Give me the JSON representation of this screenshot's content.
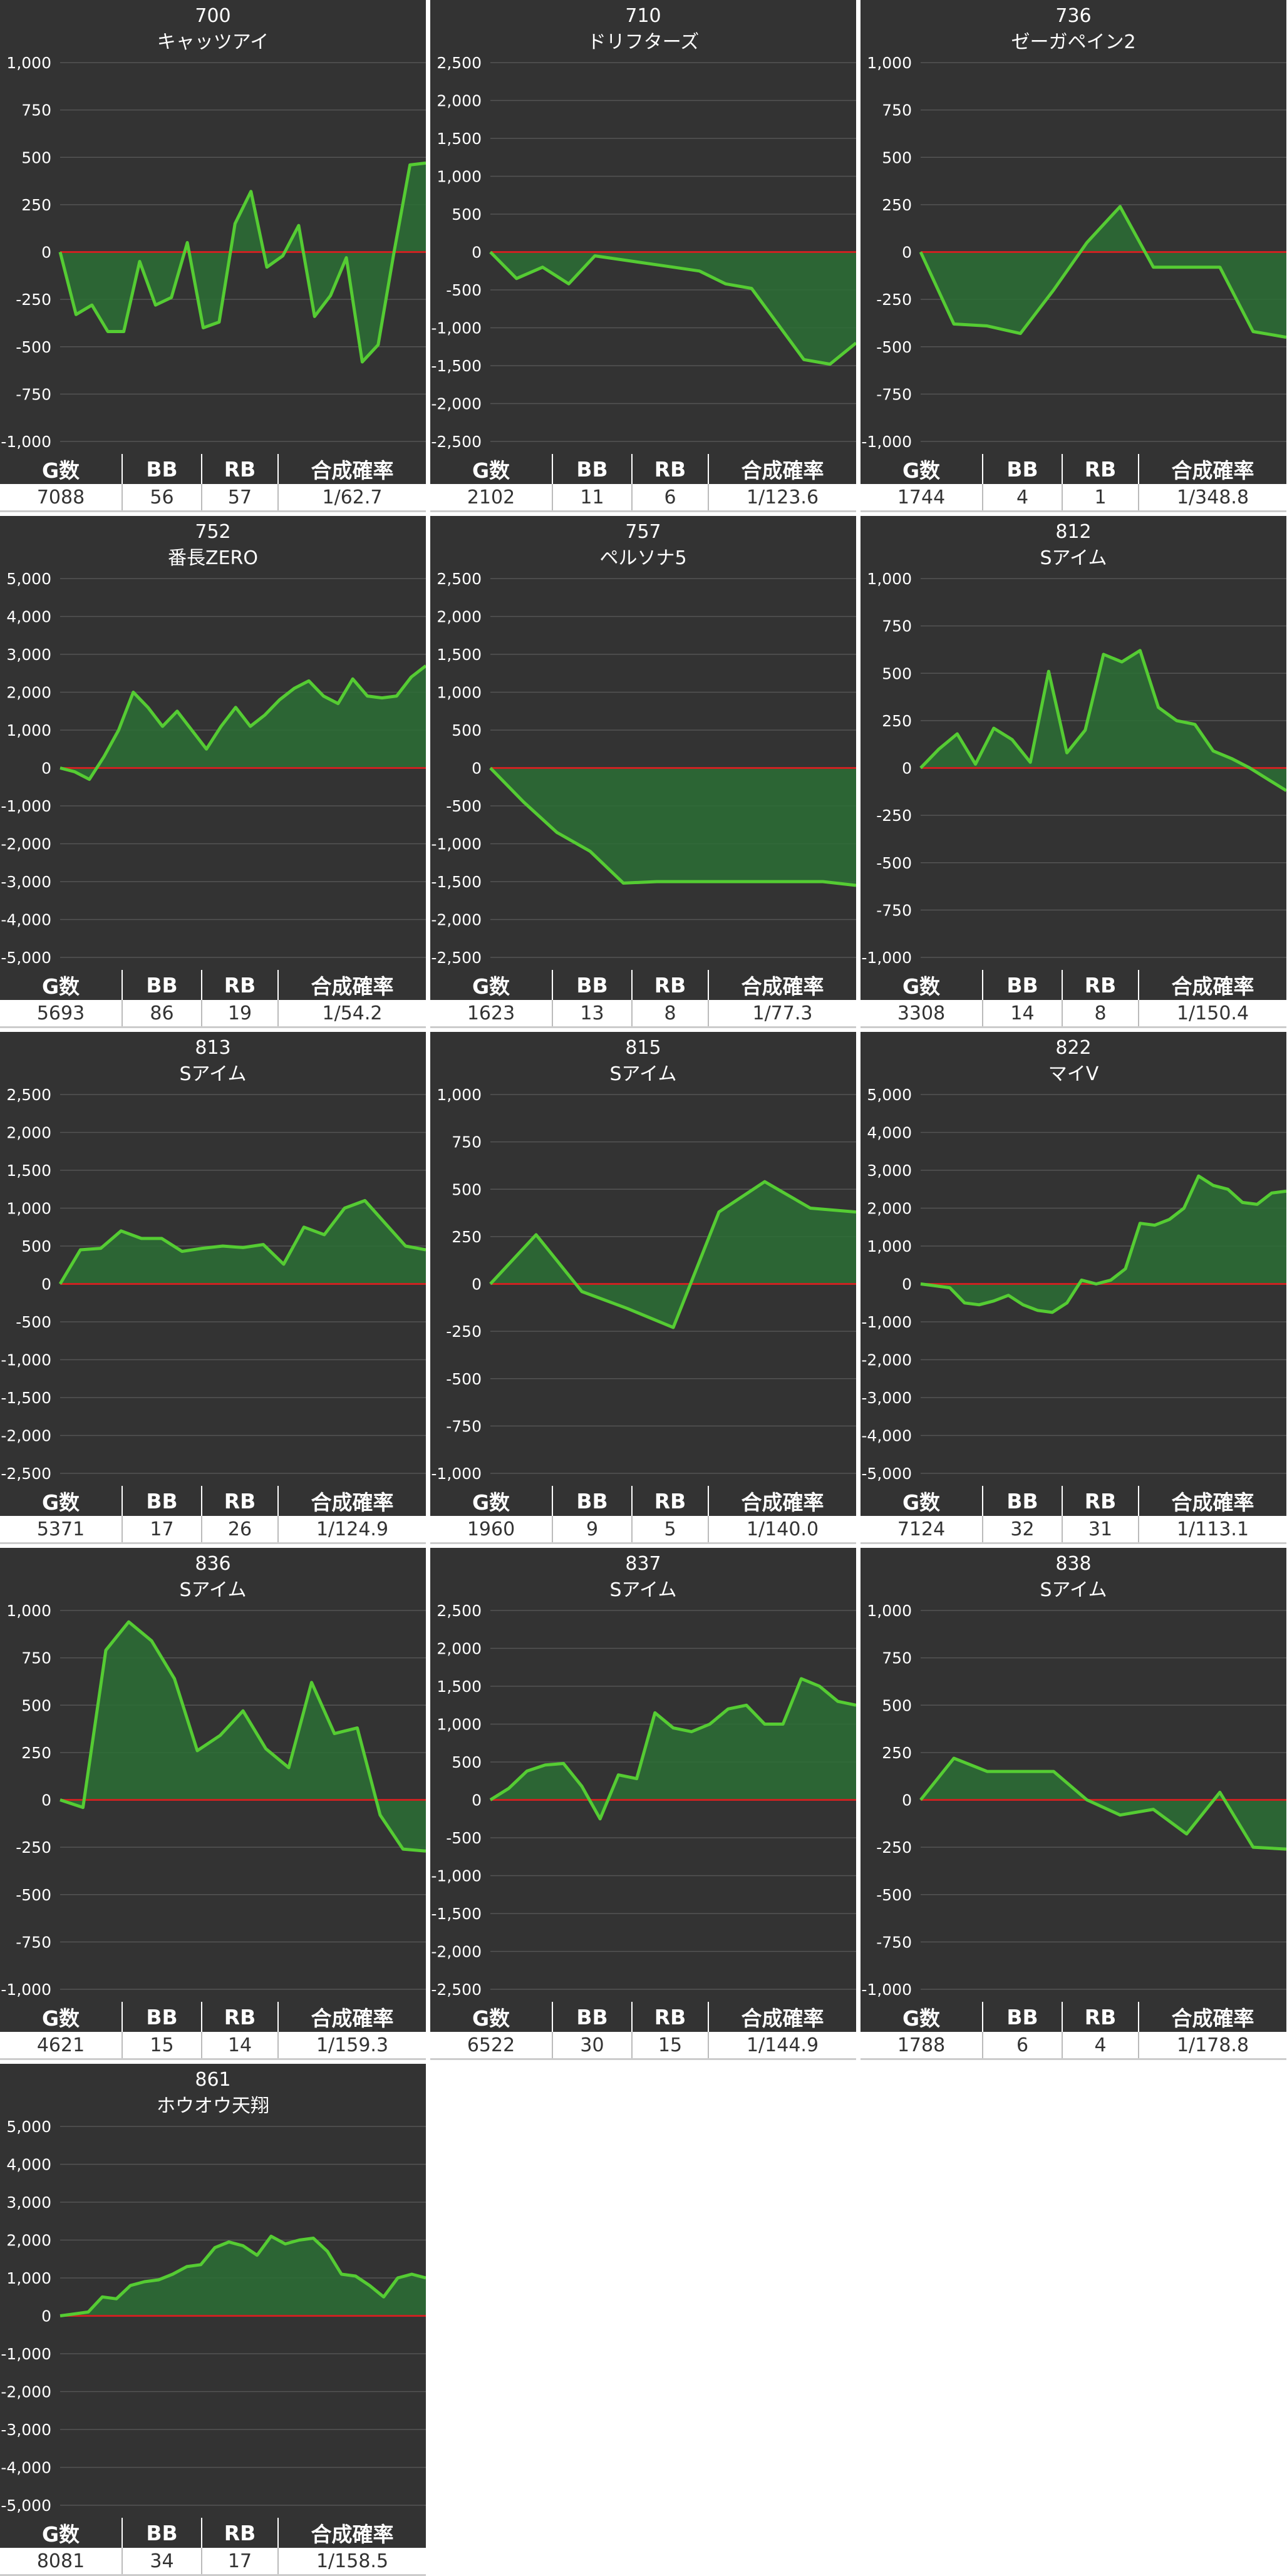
{
  "stat_headers": [
    "G数",
    "BB",
    "RB",
    "合成確率"
  ],
  "colors": {
    "background": "#333333",
    "line": "#55cc33",
    "fill": "#2c6e35",
    "zero_line": "#cc2222",
    "grid": "#555555"
  },
  "chart_data": [
    {
      "type": "area",
      "number": "700",
      "title": "キャッツアイ",
      "yticks": [
        "1,000",
        "750",
        "500",
        "250",
        "0",
        "-250",
        "-500",
        "-750",
        "-1,000"
      ],
      "ylim": [
        -1000,
        1000
      ],
      "values": [
        0,
        -330,
        -280,
        -420,
        -420,
        -50,
        -280,
        -240,
        50,
        -400,
        -370,
        150,
        320,
        -80,
        -20,
        140,
        -340,
        -230,
        -30,
        -580,
        -490,
        0,
        460,
        470
      ],
      "stats": {
        "games": "7088",
        "bb": "56",
        "rb": "57",
        "rate": "1/62.7"
      }
    },
    {
      "type": "area",
      "number": "710",
      "title": "ドリフターズ",
      "yticks": [
        "2,500",
        "2,000",
        "1,500",
        "1,000",
        "500",
        "0",
        "-500",
        "-1,000",
        "-1,500",
        "-2,000",
        "-2,500"
      ],
      "ylim": [
        -2500,
        2500
      ],
      "values": [
        0,
        -350,
        -200,
        -420,
        -50,
        -100,
        -150,
        -200,
        -250,
        -420,
        -480,
        -950,
        -1420,
        -1480,
        -1200
      ],
      "stats": {
        "games": "2102",
        "bb": "11",
        "rb": "6",
        "rate": "1/123.6"
      }
    },
    {
      "type": "area",
      "number": "736",
      "title": "ゼーガペイン2",
      "yticks": [
        "1,000",
        "750",
        "500",
        "250",
        "0",
        "-250",
        "-500",
        "-750",
        "-1,000"
      ],
      "ylim": [
        -1000,
        1000
      ],
      "values": [
        0,
        -380,
        -390,
        -430,
        -200,
        50,
        240,
        -80,
        -80,
        -80,
        -420,
        -450
      ],
      "stats": {
        "games": "1744",
        "bb": "4",
        "rb": "1",
        "rate": "1/348.8"
      }
    },
    {
      "type": "area",
      "number": "752",
      "title": "番長ZERO",
      "yticks": [
        "5,000",
        "4,000",
        "3,000",
        "2,000",
        "1,000",
        "0",
        "-1,000",
        "-2,000",
        "-3,000",
        "-4,000",
        "-5,000"
      ],
      "ylim": [
        -5000,
        5000
      ],
      "values": [
        0,
        -100,
        -300,
        300,
        1000,
        2000,
        1600,
        1100,
        1500,
        1000,
        500,
        1100,
        1600,
        1100,
        1400,
        1800,
        2100,
        2300,
        1900,
        1700,
        2350,
        1900,
        1850,
        1900,
        2400,
        2700
      ],
      "stats": {
        "games": "5693",
        "bb": "86",
        "rb": "19",
        "rate": "1/54.2"
      }
    },
    {
      "type": "area",
      "number": "757",
      "title": "ペルソナ5",
      "yticks": [
        "2,500",
        "2,000",
        "1,500",
        "1,000",
        "500",
        "0",
        "-500",
        "-1,000",
        "-1,500",
        "-2,000",
        "-2,500"
      ],
      "ylim": [
        -2500,
        2500
      ],
      "values": [
        0,
        -450,
        -850,
        -1100,
        -1520,
        -1500,
        -1500,
        -1500,
        -1500,
        -1500,
        -1500,
        -1550
      ],
      "stats": {
        "games": "1623",
        "bb": "13",
        "rb": "8",
        "rate": "1/77.3"
      }
    },
    {
      "type": "area",
      "number": "812",
      "title": "Sアイム",
      "yticks": [
        "1,000",
        "750",
        "500",
        "250",
        "0",
        "-250",
        "-500",
        "-750",
        "-1,000"
      ],
      "ylim": [
        -1000,
        1000
      ],
      "values": [
        0,
        100,
        180,
        20,
        210,
        150,
        30,
        510,
        80,
        200,
        600,
        560,
        620,
        320,
        250,
        230,
        90,
        50,
        0,
        -60,
        -120
      ],
      "stats": {
        "games": "3308",
        "bb": "14",
        "rb": "8",
        "rate": "1/150.4"
      }
    },
    {
      "type": "area",
      "number": "813",
      "title": "Sアイム",
      "yticks": [
        "2,500",
        "2,000",
        "1,500",
        "1,000",
        "500",
        "0",
        "-500",
        "-1,000",
        "-1,500",
        "-2,000",
        "-2,500"
      ],
      "ylim": [
        -2500,
        2500
      ],
      "values": [
        0,
        450,
        470,
        700,
        600,
        600,
        430,
        470,
        500,
        480,
        520,
        260,
        750,
        650,
        1000,
        1100,
        800,
        500,
        450
      ],
      "stats": {
        "games": "5371",
        "bb": "17",
        "rb": "26",
        "rate": "1/124.9"
      }
    },
    {
      "type": "area",
      "number": "815",
      "title": "Sアイム",
      "yticks": [
        "1,000",
        "750",
        "500",
        "250",
        "0",
        "-250",
        "-500",
        "-750",
        "-1,000"
      ],
      "ylim": [
        -1000,
        1000
      ],
      "values": [
        0,
        260,
        -40,
        -130,
        -230,
        380,
        540,
        400,
        380
      ],
      "stats": {
        "games": "1960",
        "bb": "9",
        "rb": "5",
        "rate": "1/140.0"
      }
    },
    {
      "type": "area",
      "number": "822",
      "title": "マイV",
      "yticks": [
        "5,000",
        "4,000",
        "3,000",
        "2,000",
        "1,000",
        "0",
        "-1,000",
        "-2,000",
        "-3,000",
        "-4,000",
        "-5,000"
      ],
      "ylim": [
        -5000,
        5000
      ],
      "values": [
        0,
        -50,
        -100,
        -500,
        -550,
        -450,
        -300,
        -550,
        -700,
        -750,
        -500,
        100,
        0,
        100,
        400,
        1600,
        1550,
        1700,
        2000,
        2850,
        2600,
        2500,
        2150,
        2100,
        2400,
        2450
      ],
      "stats": {
        "games": "7124",
        "bb": "32",
        "rb": "31",
        "rate": "1/113.1"
      }
    },
    {
      "type": "area",
      "number": "836",
      "title": "Sアイム",
      "yticks": [
        "1,000",
        "750",
        "500",
        "250",
        "0",
        "-250",
        "-500",
        "-750",
        "-1,000"
      ],
      "ylim": [
        -1000,
        1000
      ],
      "values": [
        0,
        -40,
        790,
        940,
        840,
        640,
        260,
        340,
        470,
        270,
        170,
        620,
        350,
        380,
        -80,
        -260,
        -270
      ],
      "stats": {
        "games": "4621",
        "bb": "15",
        "rb": "14",
        "rate": "1/159.3"
      }
    },
    {
      "type": "area",
      "number": "837",
      "title": "Sアイム",
      "yticks": [
        "2,500",
        "2,000",
        "1,500",
        "1,000",
        "500",
        "0",
        "-500",
        "-1,000",
        "-1,500",
        "-2,000",
        "-2,500"
      ],
      "ylim": [
        -2500,
        2500
      ],
      "values": [
        0,
        150,
        380,
        460,
        480,
        180,
        -250,
        330,
        280,
        1150,
        950,
        900,
        1000,
        1200,
        1250,
        1000,
        1000,
        1600,
        1500,
        1300,
        1250
      ],
      "stats": {
        "games": "6522",
        "bb": "30",
        "rb": "15",
        "rate": "1/144.9"
      }
    },
    {
      "type": "area",
      "number": "838",
      "title": "Sアイム",
      "yticks": [
        "1,000",
        "750",
        "500",
        "250",
        "0",
        "-250",
        "-500",
        "-750",
        "-1,000"
      ],
      "ylim": [
        -1000,
        1000
      ],
      "values": [
        0,
        220,
        150,
        150,
        150,
        0,
        -80,
        -50,
        -180,
        40,
        -250,
        -260
      ],
      "stats": {
        "games": "1788",
        "bb": "6",
        "rb": "4",
        "rate": "1/178.8"
      }
    },
    {
      "type": "area",
      "number": "861",
      "title": "ホウオウ天翔",
      "yticks": [
        "5,000",
        "4,000",
        "3,000",
        "2,000",
        "1,000",
        "0",
        "-1,000",
        "-2,000",
        "-3,000",
        "-4,000",
        "-5,000"
      ],
      "ylim": [
        -5000,
        5000
      ],
      "values": [
        0,
        50,
        100,
        500,
        450,
        800,
        900,
        950,
        1100,
        1300,
        1350,
        1800,
        1950,
        1850,
        1600,
        2100,
        1900,
        2000,
        2050,
        1700,
        1100,
        1050,
        800,
        500,
        1000,
        1100,
        1000
      ],
      "stats": {
        "games": "8081",
        "bb": "34",
        "rb": "17",
        "rate": "1/158.5"
      }
    }
  ]
}
